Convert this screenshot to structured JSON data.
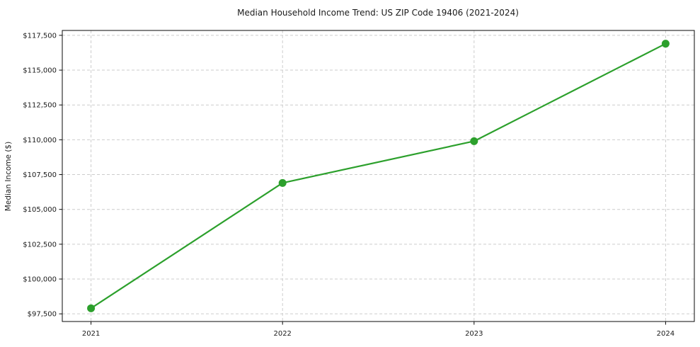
{
  "figure": {
    "title": "Median Household Income Trend: US ZIP Code 19406 (2021-2024)"
  },
  "chart_data": {
    "type": "line",
    "title": "Median Household Income Trend: US ZIP Code 19406 (2021-2024)",
    "xlabel": "",
    "ylabel": "Median Income ($)",
    "categories": [
      "2021",
      "2022",
      "2023",
      "2024"
    ],
    "x": [
      2021,
      2022,
      2023,
      2024
    ],
    "values": [
      97900,
      106900,
      109900,
      116900
    ],
    "y_ticks": [
      97500,
      100000,
      102500,
      105000,
      107500,
      110000,
      112500,
      115000,
      117500
    ],
    "y_tick_labels": [
      "$97,500",
      "$100,000",
      "$102,500",
      "$105,000",
      "$107,500",
      "$110,000",
      "$112,500",
      "$115,000",
      "$117,500"
    ],
    "xlim": [
      2020.85,
      2024.15
    ],
    "ylim": [
      96950,
      117850
    ],
    "grid": "both",
    "grid_style": "dashed",
    "legend": "none",
    "line_color": "#2ca02c",
    "marker": "circle",
    "marker_size": 5.5,
    "background": "#ffffff"
  }
}
